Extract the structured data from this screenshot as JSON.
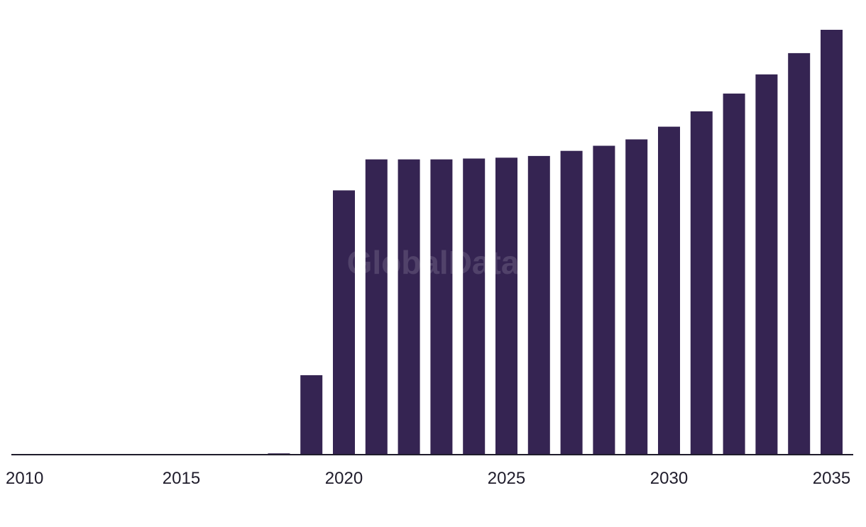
{
  "watermark": "GlobalData",
  "colors": {
    "bar": "#352452",
    "axis": "#1f1c2b",
    "background": "#ffffff"
  },
  "chart_data": {
    "type": "bar",
    "categories": [
      "2010",
      "2011",
      "2012",
      "2013",
      "2014",
      "2015",
      "2016",
      "2017",
      "2018",
      "2019",
      "2020",
      "2021",
      "2022",
      "2023",
      "2024",
      "2025",
      "2026",
      "2027",
      "2028",
      "2029",
      "2030",
      "2031",
      "2032",
      "2033",
      "2034",
      "2035"
    ],
    "series": [
      {
        "values": [
          0,
          0,
          0,
          0,
          0,
          0,
          0,
          0,
          0.3,
          18.7,
          62.2,
          69.5,
          69.5,
          69.5,
          69.7,
          69.9,
          70.3,
          71.5,
          72.7,
          74.2,
          77.2,
          80.8,
          85.0,
          89.5,
          94.5,
          100
        ]
      }
    ],
    "x_tick_labels": [
      "2010",
      "2015",
      "2020",
      "2025",
      "2030",
      "2035"
    ],
    "xlabel": "",
    "ylabel": "",
    "ylim": [
      0,
      100
    ],
    "grid": false,
    "legend": "none"
  }
}
